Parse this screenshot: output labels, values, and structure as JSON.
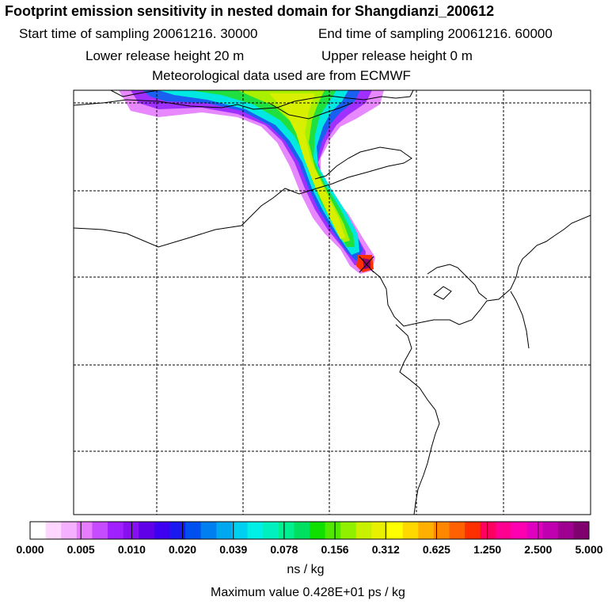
{
  "header": {
    "title": "Footprint emission sensitivity in nested domain for Shangdianzi_200612",
    "start_label": "Start time of sampling 20061216. 30000",
    "end_label": "End time of sampling 20061216. 60000",
    "lower_label": "Lower release height   20 m",
    "upper_label": "Upper release height    0 m",
    "met_label": "Meteorological data used are from ECMWF"
  },
  "chart_data": {
    "type": "heatmap",
    "title": "Footprint emission sensitivity in nested domain for Shangdianzi_200612",
    "colorbar": {
      "tick_labels": [
        "0.000",
        "0.005",
        "0.010",
        "0.020",
        "0.039",
        "0.078",
        "0.156",
        "0.312",
        "0.625",
        "1.250",
        "2.500",
        "5.000"
      ],
      "colors": [
        "#ffffff",
        "#ffd6ff",
        "#f5b0ff",
        "#e87cff",
        "#c84cff",
        "#a020ff",
        "#8810f0",
        "#6000e8",
        "#3d00f0",
        "#1a1af0",
        "#0050f0",
        "#0080f0",
        "#00a8f0",
        "#00d0f0",
        "#00f0e8",
        "#00f0c0",
        "#00f090",
        "#00e060",
        "#10e000",
        "#50e800",
        "#90f000",
        "#c8f000",
        "#e8f000",
        "#ffff00",
        "#ffd800",
        "#ffb000",
        "#ff8800",
        "#ff6000",
        "#ff3000",
        "#ff0060",
        "#ff0090",
        "#ff00b0",
        "#e000c0",
        "#c000b0",
        "#a00090",
        "#800070"
      ],
      "unit": "ns / kg"
    },
    "max_value_label": "Maximum value  0.428E+01 ps / kg",
    "grid": true,
    "receptor": "Shangdianzi"
  }
}
